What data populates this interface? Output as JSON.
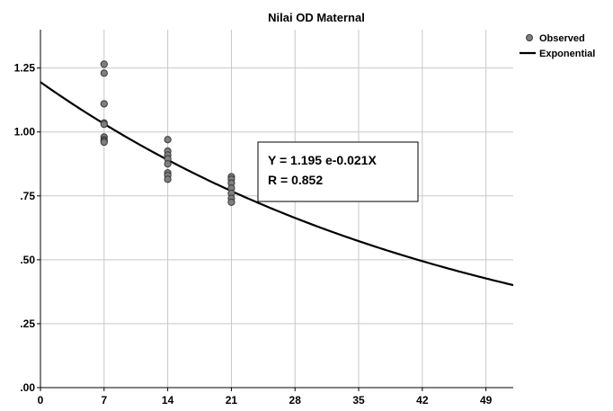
{
  "chart_data": {
    "type": "scatter",
    "title": "Nilai OD Maternal",
    "xlabel": "",
    "ylabel": "",
    "xlim": [
      0,
      52
    ],
    "ylim": [
      0,
      1.4
    ],
    "x_ticks": [
      0,
      7,
      14,
      21,
      28,
      35,
      42,
      49
    ],
    "x_tick_labels": [
      "0",
      "7",
      "14",
      "21",
      "28",
      "35",
      "42",
      "49"
    ],
    "y_ticks": [
      0,
      0.25,
      0.5,
      0.75,
      1.0,
      1.25
    ],
    "y_tick_labels": [
      ".00",
      ".25",
      ".50",
      ".75",
      "1.00",
      "1.25"
    ],
    "grid": true,
    "legend_position": "top-right",
    "series": [
      {
        "name": "Observed",
        "kind": "points",
        "color": "#7f7f7f",
        "points": [
          [
            7,
            1.265
          ],
          [
            7,
            1.23
          ],
          [
            7,
            1.11
          ],
          [
            7,
            1.035
          ],
          [
            7,
            1.03
          ],
          [
            7,
            0.98
          ],
          [
            7,
            0.97
          ],
          [
            7,
            0.965
          ],
          [
            7,
            0.96
          ],
          [
            14,
            0.97
          ],
          [
            14,
            0.925
          ],
          [
            14,
            0.91
          ],
          [
            14,
            0.895
          ],
          [
            14,
            0.875
          ],
          [
            14,
            0.84
          ],
          [
            14,
            0.83
          ],
          [
            14,
            0.815
          ],
          [
            21,
            0.825
          ],
          [
            21,
            0.815
          ],
          [
            21,
            0.8
          ],
          [
            21,
            0.78
          ],
          [
            21,
            0.76
          ],
          [
            21,
            0.74
          ],
          [
            21,
            0.725
          ]
        ]
      },
      {
        "name": "Exponential",
        "kind": "curve",
        "color": "#000000",
        "model": {
          "a": 1.195,
          "b": -0.021
        }
      }
    ],
    "annotation": {
      "line1": "Y = 1.195 e-0.021X",
      "line2": "R = 0.852"
    }
  }
}
